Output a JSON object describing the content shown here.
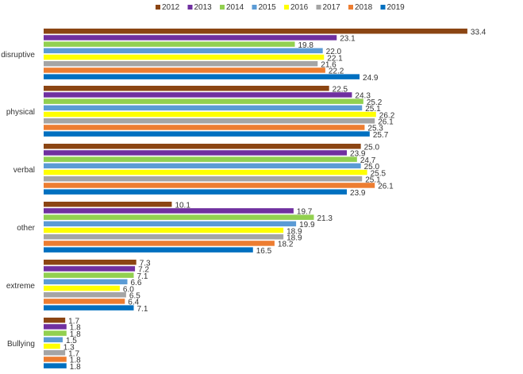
{
  "chart_data": {
    "type": "bar",
    "orientation": "horizontal",
    "title": "",
    "xlabel": "",
    "ylabel": "",
    "xlim": [
      0,
      34
    ],
    "grid": false,
    "legend_position": "top",
    "categories": [
      "disruptive",
      "physical",
      "verbal",
      "other",
      "extreme",
      "Bullying"
    ],
    "series": [
      {
        "name": "2012",
        "color": "#8B4513",
        "values": [
          33.4,
          22.5,
          25.0,
          10.1,
          7.3,
          1.7
        ]
      },
      {
        "name": "2013",
        "color": "#7030A0",
        "values": [
          23.1,
          24.3,
          23.9,
          19.7,
          7.2,
          1.8
        ]
      },
      {
        "name": "2014",
        "color": "#92D050",
        "values": [
          19.8,
          25.2,
          24.7,
          21.3,
          7.1,
          1.8
        ]
      },
      {
        "name": "2015",
        "color": "#5B9BD5",
        "values": [
          22.0,
          25.1,
          25.0,
          19.9,
          6.6,
          1.5
        ]
      },
      {
        "name": "2016",
        "color": "#FFFF00",
        "values": [
          22.1,
          26.2,
          25.5,
          18.9,
          6.0,
          1.3
        ]
      },
      {
        "name": "2017",
        "color": "#A5A5A5",
        "values": [
          21.6,
          26.1,
          25.1,
          18.9,
          6.5,
          1.7
        ]
      },
      {
        "name": "2018",
        "color": "#ED7D31",
        "values": [
          22.2,
          25.3,
          26.1,
          18.2,
          6.4,
          1.8
        ]
      },
      {
        "name": "2019",
        "color": "#0070C0",
        "values": [
          24.9,
          25.7,
          23.9,
          16.5,
          7.1,
          1.8
        ]
      }
    ]
  }
}
